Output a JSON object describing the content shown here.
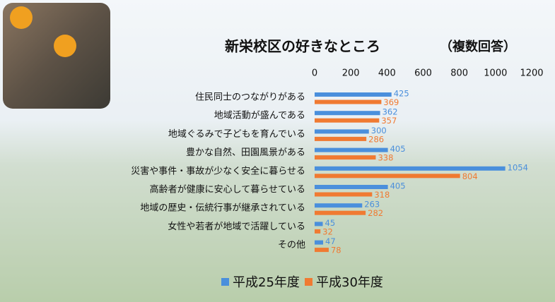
{
  "chart_data": {
    "type": "bar",
    "orientation": "horizontal",
    "title": "新栄校区の好きなところ",
    "subtitle": "（複数回答）",
    "categories": [
      "住民同士のつながりがある",
      "地域活動が盛んである",
      "地域ぐるみで子どもを育んでいる",
      "豊かな自然、田園風景がある",
      "災害や事件・事故が少なく安全に暮らせる",
      "高齢者が健康に安心して暮らせている",
      "地域の歴史・伝統行事が継承されている",
      "女性や若者が地域で活躍している",
      "その他"
    ],
    "series": [
      {
        "name": "平成25年度",
        "color": "#4a8fdc",
        "values": [
          425,
          362,
          300,
          405,
          1054,
          405,
          263,
          45,
          47
        ]
      },
      {
        "name": "平成30年度",
        "color": "#f07a32",
        "values": [
          369,
          357,
          286,
          338,
          804,
          318,
          282,
          32,
          78
        ]
      }
    ],
    "xlim": [
      0,
      1200
    ],
    "xticks": [
      0,
      200,
      400,
      600,
      800,
      1000,
      1200
    ],
    "legend": "bottom",
    "grid": false
  }
}
